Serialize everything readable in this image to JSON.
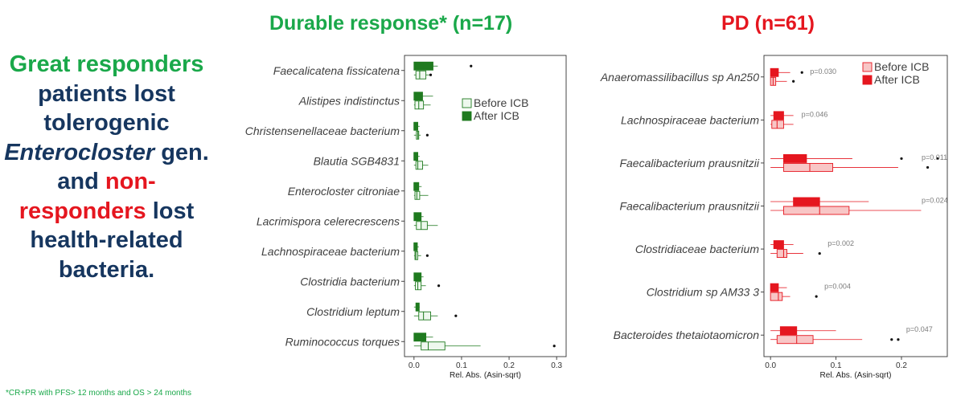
{
  "left_text": {
    "line1": "Great responders",
    "line2": "patients lost",
    "line3": "tolerogenic",
    "line4_italic": "Enterocloster",
    "line4_rest": " gen.",
    "line5_a": "and ",
    "line5_b": "non-",
    "line6_a": "responders",
    "line6_b": " lost",
    "line7": "health-related",
    "line8": "bacteria."
  },
  "footnote": "*CR+PR with PFS> 12 months and OS > 24 months",
  "colors": {
    "green_title": "#1aa84a",
    "navy_text": "#16365f",
    "red_title": "#e5161f",
    "after_green": "#1f7a1f",
    "before_green_fill": "#eef8ee",
    "after_red": "#e5161f",
    "before_red_fill": "#f8c6c6"
  },
  "chart_data": [
    {
      "type": "boxplot",
      "title": "Durable response* (n=17)",
      "xlabel": "Rel. Abs. (Asin-sqrt)",
      "xlim": [
        -0.02,
        0.32
      ],
      "xticks": [
        "0.0",
        "0.1",
        "0.2",
        "0.3"
      ],
      "xtick_values": [
        0.0,
        0.1,
        0.2,
        0.3
      ],
      "legend": [
        "Before ICB",
        "After ICB"
      ],
      "legend_position": "right",
      "categories": [
        "Faecalicatena fissicatena",
        "Alistipes indistinctus",
        "Christensenellaceae bacterium",
        "Blautia SGB4831",
        "Enterocloster citroniae",
        "Lacrimispora celerecrescens",
        "Lachnospiraceae bacterium",
        "Clostridia bacterium",
        "Clostridium leptum",
        "Ruminococcus torques"
      ],
      "series": [
        {
          "name": "After ICB",
          "boxes": [
            {
              "min": 0.0,
              "q1": 0.0,
              "median": 0.02,
              "q3": 0.04,
              "max": 0.05,
              "outliers": [
                0.12
              ]
            },
            {
              "min": 0.0,
              "q1": 0.0,
              "median": 0.005,
              "q3": 0.018,
              "max": 0.04,
              "outliers": []
            },
            {
              "min": 0.0,
              "q1": 0.0,
              "median": 0.0,
              "q3": 0.008,
              "max": 0.012,
              "outliers": []
            },
            {
              "min": 0.0,
              "q1": 0.0,
              "median": 0.0,
              "q3": 0.008,
              "max": 0.012,
              "outliers": []
            },
            {
              "min": 0.0,
              "q1": 0.0,
              "median": 0.0,
              "q3": 0.01,
              "max": 0.016,
              "outliers": []
            },
            {
              "min": 0.0,
              "q1": 0.0,
              "median": 0.004,
              "q3": 0.015,
              "max": 0.02,
              "outliers": []
            },
            {
              "min": 0.0,
              "q1": 0.0,
              "median": 0.0,
              "q3": 0.007,
              "max": 0.01,
              "outliers": []
            },
            {
              "min": 0.0,
              "q1": 0.0,
              "median": 0.004,
              "q3": 0.015,
              "max": 0.02,
              "outliers": []
            },
            {
              "min": 0.0,
              "q1": 0.004,
              "median": 0.007,
              "q3": 0.011,
              "max": 0.012,
              "outliers": []
            },
            {
              "min": 0.0,
              "q1": 0.0,
              "median": 0.01,
              "q3": 0.025,
              "max": 0.04,
              "outliers": []
            }
          ]
        },
        {
          "name": "Before ICB",
          "boxes": [
            {
              "min": 0.0,
              "q1": 0.004,
              "median": 0.012,
              "q3": 0.025,
              "max": 0.035,
              "outliers": [
                0.035
              ]
            },
            {
              "min": 0.0,
              "q1": 0.002,
              "median": 0.01,
              "q3": 0.02,
              "max": 0.035,
              "outliers": []
            },
            {
              "min": 0.0,
              "q1": 0.005,
              "median": 0.008,
              "q3": 0.01,
              "max": 0.014,
              "outliers": [
                0.028
              ]
            },
            {
              "min": 0.0,
              "q1": 0.004,
              "median": 0.008,
              "q3": 0.018,
              "max": 0.03,
              "outliers": []
            },
            {
              "min": 0.0,
              "q1": 0.002,
              "median": 0.006,
              "q3": 0.012,
              "max": 0.03,
              "outliers": []
            },
            {
              "min": 0.0,
              "q1": 0.005,
              "median": 0.015,
              "q3": 0.028,
              "max": 0.05,
              "outliers": []
            },
            {
              "min": 0.0,
              "q1": 0.002,
              "median": 0.004,
              "q3": 0.008,
              "max": 0.015,
              "outliers": [
                0.028
              ]
            },
            {
              "min": 0.0,
              "q1": 0.003,
              "median": 0.008,
              "q3": 0.015,
              "max": 0.025,
              "outliers": [
                0.052
              ]
            },
            {
              "min": 0.0,
              "q1": 0.01,
              "median": 0.02,
              "q3": 0.035,
              "max": 0.05,
              "outliers": [
                0.088
              ]
            },
            {
              "min": 0.0,
              "q1": 0.015,
              "median": 0.03,
              "q3": 0.065,
              "max": 0.14,
              "outliers": [
                0.295
              ]
            }
          ]
        }
      ]
    },
    {
      "type": "boxplot",
      "title": "PD (n=61)",
      "xlabel": "Rel. Abs. (Asin-sqrt)",
      "xlim": [
        -0.01,
        0.27
      ],
      "xticks": [
        "0.0",
        "0.1",
        "0.2"
      ],
      "xtick_values": [
        0.0,
        0.1,
        0.2
      ],
      "legend": [
        "Before ICB",
        "After ICB"
      ],
      "legend_position": "top-right",
      "categories": [
        "Anaeromassilibacillus sp An250",
        "Lachnospiraceae bacterium",
        "Faecalibacterium prausnitzii",
        "Faecalibacterium prausnitzii",
        "Clostridiaceae bacterium",
        "Clostridium sp AM33 3",
        "Bacteroides thetaiotaomicron"
      ],
      "pvalues": [
        "p=0.030",
        "p=0.046",
        "p=0.011",
        "p=0.024",
        "p=0.002",
        "p=0.004",
        "p=0.047"
      ],
      "series": [
        {
          "name": "After ICB",
          "boxes": [
            {
              "min": 0.0,
              "q1": 0.0,
              "median": 0.005,
              "q3": 0.012,
              "max": 0.03,
              "outliers": [
                0.048
              ]
            },
            {
              "min": 0.0,
              "q1": 0.005,
              "median": 0.012,
              "q3": 0.02,
              "max": 0.035,
              "outliers": []
            },
            {
              "min": 0.0,
              "q1": 0.02,
              "median": 0.04,
              "q3": 0.055,
              "max": 0.125,
              "outliers": [
                0.2,
                0.255
              ]
            },
            {
              "min": 0.0,
              "q1": 0.035,
              "median": 0.055,
              "q3": 0.075,
              "max": 0.15,
              "outliers": []
            },
            {
              "min": 0.0,
              "q1": 0.005,
              "median": 0.012,
              "q3": 0.02,
              "max": 0.035,
              "outliers": []
            },
            {
              "min": 0.0,
              "q1": 0.0,
              "median": 0.005,
              "q3": 0.012,
              "max": 0.025,
              "outliers": []
            },
            {
              "min": 0.0,
              "q1": 0.015,
              "median": 0.03,
              "q3": 0.04,
              "max": 0.1,
              "outliers": []
            }
          ]
        },
        {
          "name": "Before ICB",
          "boxes": [
            {
              "min": 0.0,
              "q1": 0.0,
              "median": 0.004,
              "q3": 0.008,
              "max": 0.025,
              "outliers": [
                0.035
              ]
            },
            {
              "min": 0.0,
              "q1": 0.002,
              "median": 0.01,
              "q3": 0.02,
              "max": 0.035,
              "outliers": []
            },
            {
              "min": 0.0,
              "q1": 0.02,
              "median": 0.06,
              "q3": 0.095,
              "max": 0.195,
              "outliers": [
                0.24
              ]
            },
            {
              "min": 0.0,
              "q1": 0.02,
              "median": 0.075,
              "q3": 0.12,
              "max": 0.23,
              "outliers": []
            },
            {
              "min": 0.0,
              "q1": 0.01,
              "median": 0.02,
              "q3": 0.025,
              "max": 0.05,
              "outliers": [
                0.075
              ]
            },
            {
              "min": 0.0,
              "q1": 0.0,
              "median": 0.012,
              "q3": 0.018,
              "max": 0.03,
              "outliers": [
                0.07
              ]
            },
            {
              "min": 0.0,
              "q1": 0.01,
              "median": 0.04,
              "q3": 0.065,
              "max": 0.14,
              "outliers": [
                0.185,
                0.195
              ]
            }
          ]
        }
      ]
    }
  ]
}
